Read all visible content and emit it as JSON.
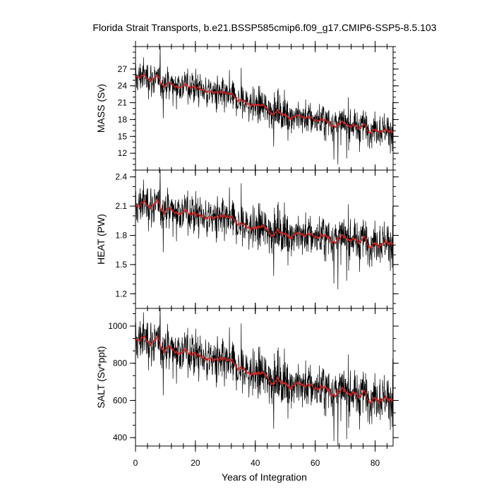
{
  "chart_data": {
    "type": "line",
    "title": "Florida Strait Transports, b.e21.BSSP585cmip6.f09_g17.CMIP6-SSP5-8.5.103",
    "xlabel": "Years of Integration",
    "xlim": [
      0,
      86
    ],
    "x_ticks": [
      "0",
      "20",
      "40",
      "60",
      "80"
    ],
    "series_colors": {
      "monthly": "#000000",
      "smoothed": "#d62020"
    },
    "panels": [
      {
        "ylabel": "MASS (Sv)",
        "ylim": [
          9,
          31
        ],
        "y_ticks": [
          "12",
          "15",
          "18",
          "21",
          "24",
          "27"
        ],
        "y_tick_values": [
          12,
          15,
          18,
          21,
          24,
          27
        ],
        "trend_x": [
          0,
          2,
          10,
          20,
          30,
          40,
          50,
          60,
          70,
          80,
          86
        ],
        "trend_y": [
          25.0,
          25.9,
          24.5,
          23.8,
          22.0,
          20.5,
          19.0,
          18.0,
          17.0,
          16.5,
          16.0
        ],
        "noise_sd": 1.7
      },
      {
        "ylabel": "HEAT (PW)",
        "ylim": [
          1.05,
          2.47
        ],
        "y_ticks": [
          "1.2",
          "1.5",
          "1.8",
          "2.1",
          "2.4"
        ],
        "y_tick_values": [
          1.2,
          1.5,
          1.8,
          2.1,
          2.4
        ],
        "trend_x": [
          0,
          2,
          10,
          20,
          30,
          40,
          50,
          60,
          70,
          80,
          86
        ],
        "trend_y": [
          2.05,
          2.14,
          2.08,
          2.02,
          1.94,
          1.87,
          1.83,
          1.79,
          1.76,
          1.74,
          1.73
        ],
        "noise_sd": 0.11
      },
      {
        "ylabel": "SALT (Sv*ppt)",
        "ylim": [
          355,
          1095
        ],
        "y_ticks": [
          "400",
          "600",
          "800",
          "1000"
        ],
        "y_tick_values": [
          400,
          600,
          800,
          1000
        ],
        "trend_x": [
          0,
          2,
          10,
          20,
          30,
          40,
          50,
          60,
          70,
          80,
          86
        ],
        "trend_y": [
          900,
          940,
          890,
          850,
          790,
          740,
          700,
          670,
          640,
          625,
          610
        ],
        "noise_sd": 58
      }
    ]
  }
}
